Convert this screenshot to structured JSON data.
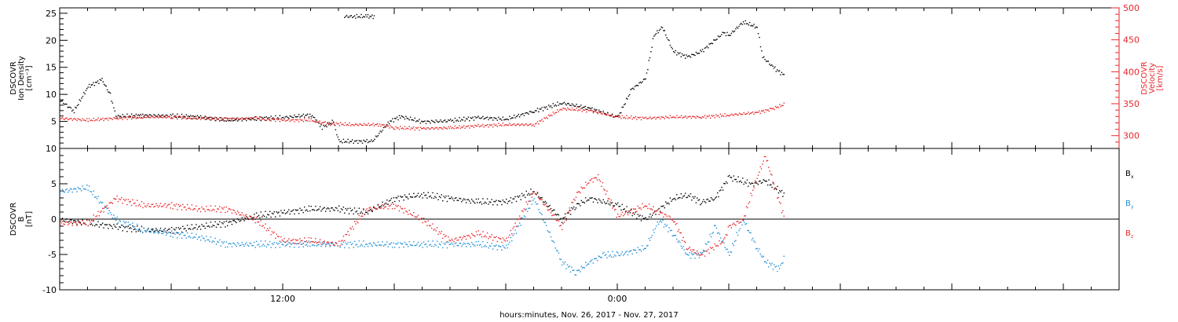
{
  "xlabel": "hours:minutes, Nov. 26, 2017 - Nov. 27, 2017",
  "chart_data": [
    {
      "type": "scatter",
      "panel": "top",
      "x_range_hours": [
        -8,
        30
      ],
      "x_ticks": [
        {
          "value": 0,
          "label": "12:00"
        },
        {
          "value": 12,
          "label": "0:00"
        }
      ],
      "left_axis": {
        "label_lines": [
          "DSCOVR",
          "Ion Density",
          "[cm⁻³]"
        ],
        "ylim": [
          0,
          26
        ],
        "ticks": [
          5,
          10,
          15,
          20,
          25
        ],
        "color": "#000000"
      },
      "right_axis": {
        "label_lines": [
          "DSCOVR",
          "Velocity",
          "[km/s]"
        ],
        "ylim": [
          280,
          500
        ],
        "ticks": [
          300,
          350,
          400,
          450,
          500
        ],
        "color": "#e8262a"
      },
      "series": [
        {
          "axis": "left",
          "color": "#000000",
          "points": [
            [
              -8,
              9
            ],
            [
              -7.5,
              7
            ],
            [
              -7,
              11.5
            ],
            [
              -6.5,
              12.8
            ],
            [
              -6.2,
              10
            ],
            [
              -6,
              6
            ],
            [
              -5,
              6.2
            ],
            [
              -4,
              6.1
            ],
            [
              -3,
              5.9
            ],
            [
              -2,
              5.3
            ],
            [
              -1,
              5.6
            ],
            [
              0,
              5.8
            ],
            [
              1,
              6.3
            ],
            [
              1.4,
              4
            ],
            [
              1.8,
              5
            ],
            [
              2,
              1.4
            ],
            [
              3,
              1.4
            ],
            [
              3.2,
              1.4
            ],
            [
              3.8,
              5
            ],
            [
              4.2,
              6
            ],
            [
              5,
              5
            ],
            [
              6,
              5.2
            ],
            [
              7,
              5.8
            ],
            [
              8,
              5.5
            ],
            [
              9,
              7
            ],
            [
              10,
              8.5
            ],
            [
              11,
              7.5
            ],
            [
              12,
              5.8
            ],
            [
              12.5,
              11
            ],
            [
              13,
              13
            ],
            [
              13.3,
              21
            ],
            [
              13.6,
              22.5
            ],
            [
              14,
              18
            ],
            [
              14.5,
              17
            ],
            [
              15,
              18
            ],
            [
              15.8,
              21.5
            ],
            [
              16,
              21
            ],
            [
              16.5,
              23.5
            ],
            [
              17,
              22.5
            ],
            [
              17.2,
              17
            ],
            [
              17.6,
              15
            ],
            [
              18,
              13.5
            ]
          ]
        },
        {
          "axis": "left",
          "color": "#000000",
          "points": [
            [
              2.2,
              24.5
            ],
            [
              2.6,
              24.5
            ],
            [
              3,
              24.5
            ],
            [
              3.3,
              24.5
            ]
          ]
        },
        {
          "axis": "right",
          "color": "#e8262a",
          "points": [
            [
              -8,
              328
            ],
            [
              -7,
              325
            ],
            [
              -6,
              328
            ],
            [
              -5,
              330
            ],
            [
              -4,
              330
            ],
            [
              -3,
              328
            ],
            [
              -2,
              327
            ],
            [
              -1,
              328
            ],
            [
              0,
              325
            ],
            [
              1,
              325
            ],
            [
              1.5,
              320
            ],
            [
              2.5,
              318
            ],
            [
              3.5,
              318
            ],
            [
              4,
              313
            ],
            [
              5,
              312
            ],
            [
              6,
              313
            ],
            [
              7,
              316
            ],
            [
              8,
              318
            ],
            [
              9,
              318
            ],
            [
              10,
              343
            ],
            [
              11,
              340
            ],
            [
              12,
              330
            ],
            [
              13,
              328
            ],
            [
              14,
              330
            ],
            [
              15,
              330
            ],
            [
              16,
              333
            ],
            [
              17,
              337
            ],
            [
              17.5,
              342
            ],
            [
              18,
              350
            ]
          ]
        }
      ]
    },
    {
      "type": "scatter",
      "panel": "bottom",
      "x_range_hours": [
        -8,
        30
      ],
      "left_axis": {
        "label_lines": [
          "DSCOVR",
          "B",
          "[nT]"
        ],
        "ylim": [
          -10,
          10
        ],
        "ticks": [
          -10,
          -5,
          0,
          5,
          10
        ],
        "color": "#000000"
      },
      "zero_line": true,
      "legend_position": "right",
      "series": [
        {
          "name": "Bx",
          "color": "#000000",
          "points": [
            [
              -8,
              0
            ],
            [
              -7,
              -0.5
            ],
            [
              -6,
              -1
            ],
            [
              -5,
              -1.5
            ],
            [
              -4,
              -1.5
            ],
            [
              -3,
              -1
            ],
            [
              -2,
              -0.5
            ],
            [
              -1,
              0.5
            ],
            [
              0,
              1
            ],
            [
              1,
              1.5
            ],
            [
              2,
              1.5
            ],
            [
              3,
              1
            ],
            [
              4,
              3
            ],
            [
              5,
              3.5
            ],
            [
              6,
              3
            ],
            [
              7,
              2.5
            ],
            [
              8,
              2.5
            ],
            [
              9,
              4
            ],
            [
              10,
              0
            ],
            [
              10.5,
              2
            ],
            [
              11,
              3
            ],
            [
              12,
              2
            ],
            [
              13,
              0
            ],
            [
              14,
              3
            ],
            [
              14.5,
              3.5
            ],
            [
              15,
              2.5
            ],
            [
              15.5,
              3
            ],
            [
              16,
              6
            ],
            [
              16.8,
              5
            ],
            [
              17.3,
              5.5
            ],
            [
              18,
              3.5
            ]
          ]
        },
        {
          "name": "By",
          "color": "#1f8fd6",
          "points": [
            [
              -8,
              4
            ],
            [
              -7,
              4.5
            ],
            [
              -6,
              0
            ],
            [
              -5,
              -1.5
            ],
            [
              -4,
              -2
            ],
            [
              -3,
              -2.5
            ],
            [
              -2,
              -3.5
            ],
            [
              -1,
              -3.5
            ],
            [
              0,
              -3.5
            ],
            [
              1,
              -3.5
            ],
            [
              2,
              -3.5
            ],
            [
              3,
              -3.5
            ],
            [
              4,
              -3.5
            ],
            [
              5,
              -3.5
            ],
            [
              6,
              -3.5
            ],
            [
              7,
              -3.5
            ],
            [
              8,
              -4
            ],
            [
              9,
              3
            ],
            [
              10,
              -6
            ],
            [
              10.5,
              -7.5
            ],
            [
              11,
              -6
            ],
            [
              11.5,
              -5
            ],
            [
              12,
              -5
            ],
            [
              13,
              -4
            ],
            [
              13.5,
              0
            ],
            [
              14,
              -2
            ],
            [
              14.5,
              -5
            ],
            [
              15,
              -5
            ],
            [
              15.5,
              -1
            ],
            [
              16,
              -5
            ],
            [
              16.5,
              0
            ],
            [
              17,
              -4
            ],
            [
              17.3,
              -6
            ],
            [
              17.8,
              -7
            ],
            [
              18,
              -5
            ]
          ]
        },
        {
          "name": "Bz",
          "color": "#e8262a",
          "points": [
            [
              -8,
              -0.5
            ],
            [
              -7,
              -0.5
            ],
            [
              -6,
              3
            ],
            [
              -5,
              2
            ],
            [
              -4,
              2
            ],
            [
              -3,
              1.5
            ],
            [
              -2,
              1.5
            ],
            [
              -1,
              0
            ],
            [
              0,
              -3
            ],
            [
              1,
              -3
            ],
            [
              2,
              -3.5
            ],
            [
              3,
              1.5
            ],
            [
              4,
              2
            ],
            [
              5,
              0
            ],
            [
              6,
              -3
            ],
            [
              7,
              -2
            ],
            [
              8,
              -3
            ],
            [
              9,
              4
            ],
            [
              10,
              -1
            ],
            [
              10.5,
              3.5
            ],
            [
              11,
              5.5
            ],
            [
              11.3,
              6
            ],
            [
              12,
              0.5
            ],
            [
              13,
              2
            ],
            [
              14,
              0
            ],
            [
              14.5,
              -4
            ],
            [
              15,
              -5
            ],
            [
              15.8,
              -3
            ],
            [
              16,
              -1
            ],
            [
              16.5,
              0
            ],
            [
              17,
              6
            ],
            [
              17.3,
              9
            ],
            [
              17.6,
              5
            ],
            [
              18,
              0
            ]
          ]
        }
      ]
    }
  ],
  "legend": [
    {
      "text": "B",
      "sub": "x",
      "color": "#000000"
    },
    {
      "text": "B",
      "sub": "y",
      "color": "#1f8fd6"
    },
    {
      "text": "B",
      "sub": "z",
      "color": "#e8262a"
    }
  ]
}
